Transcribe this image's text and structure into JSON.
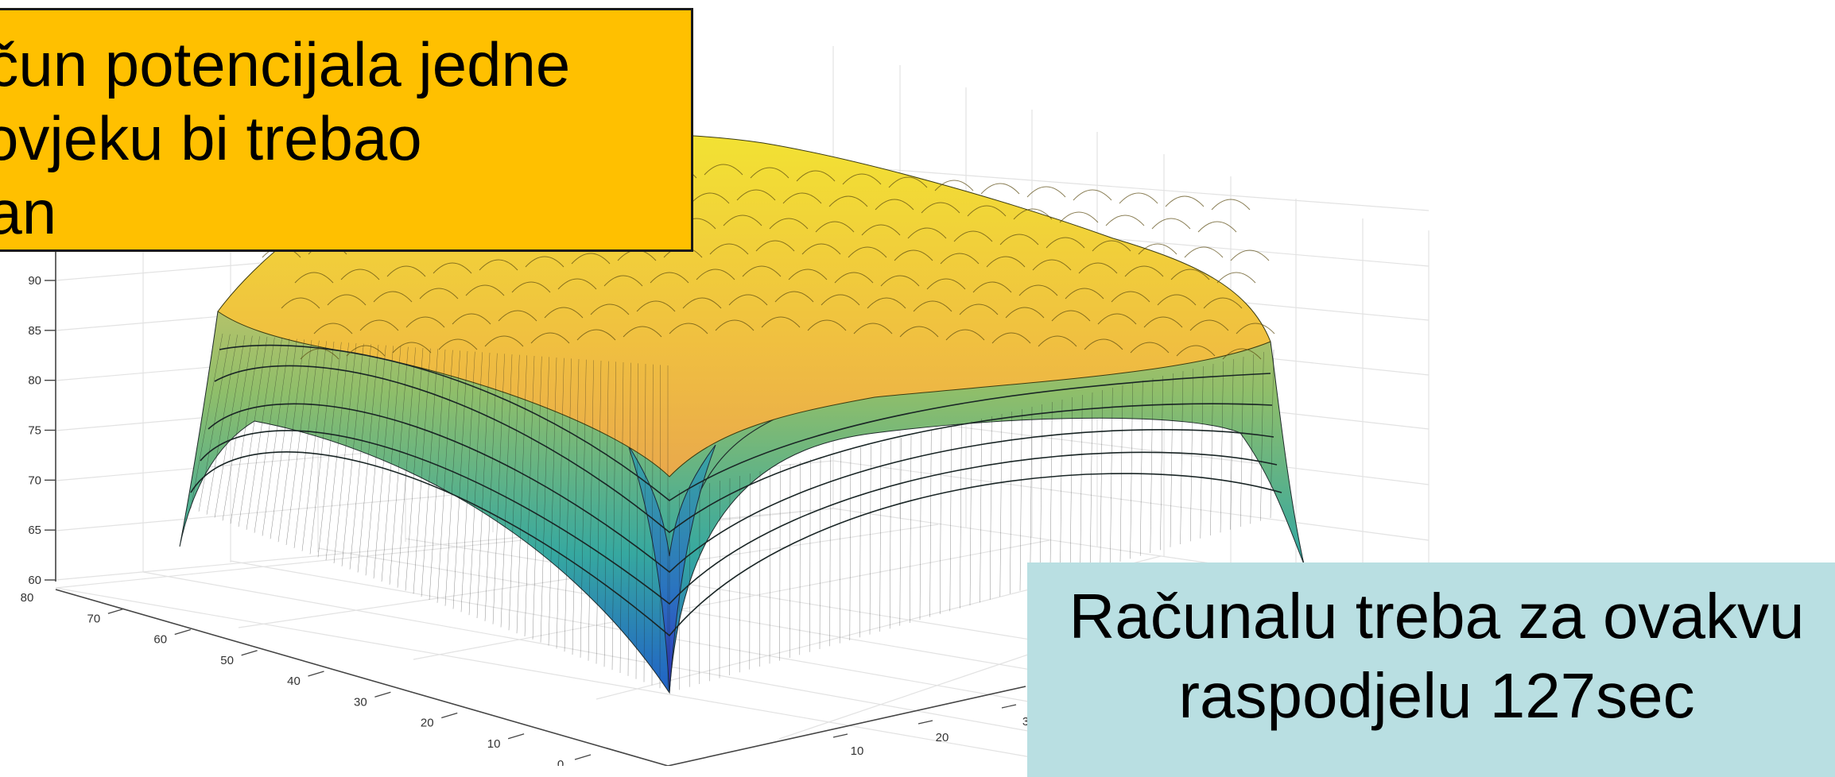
{
  "chart_data": {
    "type": "surface",
    "title": "",
    "xlabel": "",
    "ylabel": "",
    "zlabel": "",
    "grid": true,
    "colormap": "parula",
    "z_ticks": [
      "60",
      "65",
      "70",
      "75",
      "80",
      "85",
      "90"
    ],
    "y_ticks": [
      "0",
      "10",
      "20",
      "30",
      "40",
      "50",
      "60",
      "70",
      "80"
    ],
    "x_ticks": [
      "10",
      "20",
      "3"
    ],
    "zlim": [
      60,
      95
    ],
    "xlim": [
      0,
      80
    ],
    "ylim": [
      0,
      80
    ],
    "surface_summary": {
      "corner_min": 62,
      "edge_level": 77,
      "center_plateau": 90,
      "front_spike_min": 52
    }
  },
  "callouts": {
    "top": [
      "ačun potencijala jedne",
      "čovjeku bi trebao",
      "dan"
    ],
    "bottom": [
      "Računalu treba za ovakvu",
      "raspodjelu 127sec"
    ]
  },
  "colors": {
    "top_callout_bg": "#ffc000",
    "bottom_callout_bg": "#b9dfe2",
    "surface_high": "#f0e030",
    "surface_mid": "#9bc860",
    "surface_low": "#2a8ab8",
    "surface_min": "#3030c8"
  }
}
